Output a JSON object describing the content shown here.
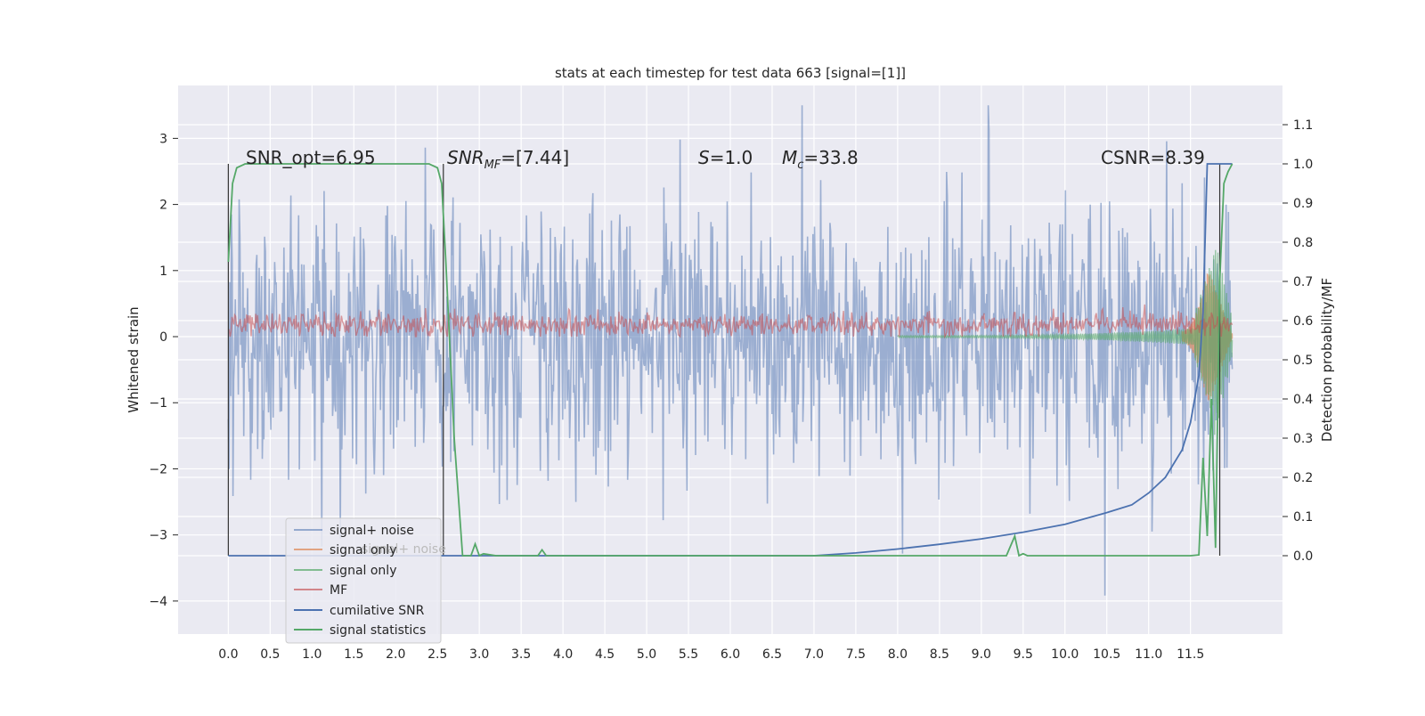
{
  "chart_data": {
    "type": "line",
    "title": "stats at each timestep for test data 663 [signal=[1]]",
    "xlabel": "",
    "ylabel": "Whitened strain",
    "ylabel_right": "Detection probability/MF",
    "xlim": [
      -0.6,
      12.6
    ],
    "ylim_left": [
      -4.5,
      3.8
    ],
    "ylim_right": [
      -0.2,
      1.2
    ],
    "x_ticks": [
      "0.0",
      "0.5",
      "1.0",
      "1.5",
      "2.0",
      "2.5",
      "3.0",
      "3.5",
      "4.0",
      "4.5",
      "5.0",
      "5.5",
      "6.0",
      "6.5",
      "7.0",
      "7.5",
      "8.0",
      "8.5",
      "9.0",
      "9.5",
      "10.0",
      "10.5",
      "11.0",
      "11.5"
    ],
    "y_ticks_left": [
      "−4",
      "−3",
      "−2",
      "−1",
      "0",
      "1",
      "2",
      "3"
    ],
    "y_ticks_right": [
      "0.0",
      "0.1",
      "0.2",
      "0.3",
      "0.4",
      "0.5",
      "0.6",
      "0.7",
      "0.8",
      "0.9",
      "1.0",
      "1.1"
    ],
    "grid": true,
    "legend_position": "lower-left",
    "colors": {
      "signal_noise": "#4c72b0",
      "signal_only_orange": "#dd8452",
      "signal_only_green": "#55a868",
      "mf": "#c44e52",
      "cumulative_snr": "#4c72b0",
      "signal_statistics": "#55a868",
      "background": "#eaeaf2"
    },
    "annotations": {
      "snr_opt": "SNR_opt=6.95",
      "snr_mf_base": "SNR",
      "snr_mf_sub": "MF",
      "snr_mf_val": "=[7.44]",
      "s_var": "S",
      "s_val": "=1.0",
      "mc_var": "M",
      "mc_sub": "c",
      "mc_val": "=33.8",
      "csnr": "CSNR=8.39"
    },
    "legend_overlap_text": "signal+ noise",
    "series": [
      {
        "name": "signal+ noise",
        "axis": "left",
        "style": "noise band",
        "amplitude_envelope": [
          -4.1,
          3.5
        ],
        "x_range": [
          0.0,
          12.0
        ]
      },
      {
        "name": "signal only",
        "axis": "left",
        "color": "orange",
        "x_range": [
          11.4,
          12.0
        ]
      },
      {
        "name": "signal only",
        "axis": "left",
        "color": "green",
        "x_range": [
          8.0,
          12.0
        ]
      },
      {
        "name": "MF",
        "axis": "left",
        "style": "noise band",
        "amplitude_envelope": [
          0.0,
          0.6
        ],
        "x_range": [
          0.0,
          12.0
        ]
      },
      {
        "name": "cumilative SNR",
        "axis": "right",
        "x": [
          0,
          7.0,
          7.5,
          8.0,
          8.5,
          9.0,
          9.5,
          10.0,
          10.5,
          10.8,
          11.0,
          11.2,
          11.4,
          11.5,
          11.6,
          11.65,
          11.7,
          11.8,
          12.0
        ],
        "y": [
          0,
          0,
          0.007,
          0.017,
          0.029,
          0.043,
          0.06,
          0.08,
          0.11,
          0.13,
          0.16,
          0.2,
          0.27,
          0.34,
          0.46,
          0.62,
          1.0,
          1.0,
          1.0
        ]
      },
      {
        "name": "signal statistics",
        "axis": "right",
        "x": [
          0,
          0.05,
          0.1,
          0.2,
          0.5,
          1.0,
          2.0,
          2.4,
          2.5,
          2.55,
          2.6,
          2.7,
          2.8,
          2.9,
          2.95,
          3.0,
          3.05,
          3.2,
          3.7,
          3.75,
          3.8,
          4.0,
          8.5,
          9.3,
          9.4,
          9.45,
          9.5,
          9.55,
          9.6,
          9.7,
          11.5,
          11.6,
          11.65,
          11.7,
          11.75,
          11.8,
          11.85,
          11.9,
          11.95,
          12.0
        ],
        "y": [
          0.75,
          0.95,
          0.99,
          1.0,
          1.0,
          1.0,
          1.0,
          1.0,
          0.99,
          0.95,
          0.75,
          0.3,
          0.0,
          0.0,
          0.03,
          0.0,
          0.005,
          0.0,
          0.0,
          0.015,
          0.0,
          0.0,
          0.0,
          0.0,
          0.05,
          0.0,
          0.005,
          0.0,
          0.0,
          0.0,
          0.0,
          0.002,
          0.25,
          0.05,
          0.4,
          0.02,
          0.7,
          0.95,
          0.98,
          1.0
        ]
      }
    ],
    "vertical_lines": [
      0.0,
      2.57,
      11.85
    ]
  }
}
